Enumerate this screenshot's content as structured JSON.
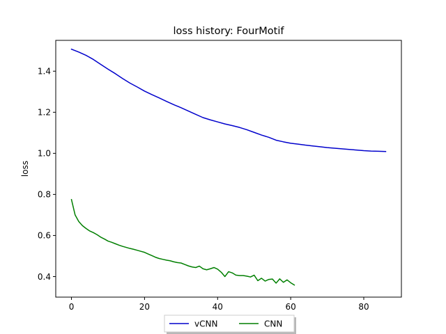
{
  "chart_data": {
    "type": "line",
    "title": "loss history:  FourMotif",
    "xlabel": "",
    "ylabel": "loss",
    "xlim": [
      -4.3,
      90.3
    ],
    "ylim": [
      0.3,
      1.55
    ],
    "xticks": [
      0,
      20,
      40,
      60,
      80
    ],
    "yticks": [
      0.4,
      0.6,
      0.8,
      1.0,
      1.2,
      1.4
    ],
    "grid": false,
    "legend_position": "bottom-center",
    "series": [
      {
        "name": "vCNN",
        "color": "#0000cc",
        "x": [
          0,
          2,
          4,
          6,
          8,
          10,
          12,
          14,
          16,
          18,
          20,
          22,
          24,
          26,
          28,
          30,
          32,
          34,
          36,
          38,
          40,
          42,
          44,
          46,
          48,
          50,
          52,
          54,
          56,
          58,
          60,
          62,
          64,
          66,
          68,
          70,
          72,
          74,
          76,
          78,
          80,
          82,
          84,
          86
        ],
        "y": [
          1.507,
          1.493,
          1.477,
          1.457,
          1.433,
          1.41,
          1.388,
          1.364,
          1.342,
          1.323,
          1.303,
          1.286,
          1.27,
          1.253,
          1.237,
          1.222,
          1.206,
          1.19,
          1.174,
          1.163,
          1.153,
          1.143,
          1.135,
          1.126,
          1.115,
          1.102,
          1.089,
          1.078,
          1.064,
          1.056,
          1.049,
          1.045,
          1.04,
          1.036,
          1.032,
          1.028,
          1.025,
          1.022,
          1.019,
          1.016,
          1.013,
          1.011,
          1.01,
          1.009
        ]
      },
      {
        "name": "CNN",
        "color": "#007f00",
        "x": [
          0,
          1,
          2,
          3,
          4,
          5,
          6,
          7,
          8,
          9,
          10,
          11,
          12,
          13,
          14,
          15,
          16,
          17,
          18,
          19,
          20,
          21,
          22,
          23,
          24,
          25,
          26,
          27,
          28,
          29,
          30,
          31,
          32,
          33,
          34,
          35,
          36,
          37,
          38,
          39,
          40,
          41,
          42,
          43,
          44,
          45,
          46,
          47,
          48,
          49,
          50,
          51,
          52,
          53,
          54,
          55,
          56,
          57,
          58,
          59,
          60,
          61
        ],
        "y": [
          0.775,
          0.7,
          0.668,
          0.648,
          0.634,
          0.622,
          0.614,
          0.604,
          0.592,
          0.583,
          0.573,
          0.567,
          0.56,
          0.553,
          0.547,
          0.542,
          0.537,
          0.533,
          0.528,
          0.523,
          0.518,
          0.51,
          0.502,
          0.494,
          0.488,
          0.484,
          0.48,
          0.477,
          0.472,
          0.468,
          0.466,
          0.459,
          0.452,
          0.447,
          0.444,
          0.451,
          0.438,
          0.433,
          0.438,
          0.444,
          0.436,
          0.421,
          0.4,
          0.424,
          0.418,
          0.407,
          0.405,
          0.405,
          0.402,
          0.398,
          0.407,
          0.38,
          0.392,
          0.378,
          0.386,
          0.388,
          0.368,
          0.389,
          0.372,
          0.384,
          0.37,
          0.359
        ]
      }
    ]
  }
}
